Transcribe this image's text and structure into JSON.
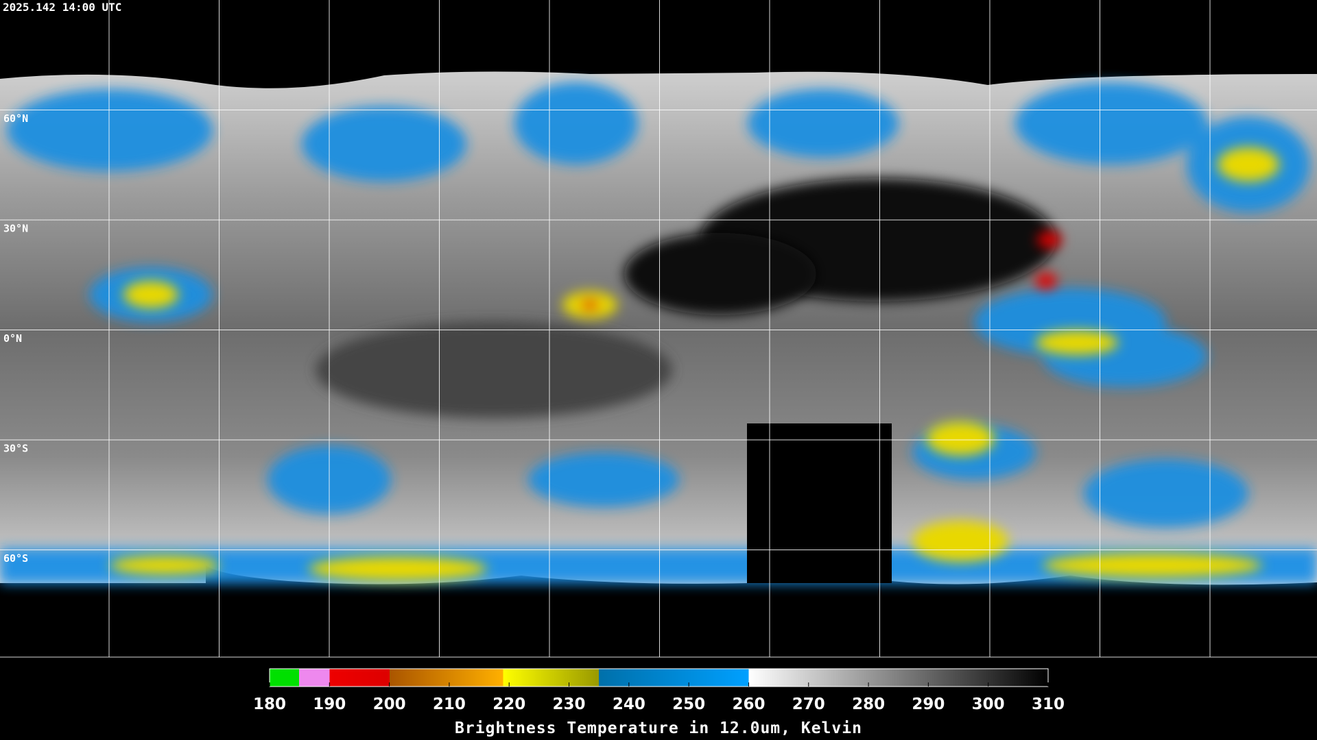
{
  "timestamp": "2025.142 14:00 UTC",
  "lat_labels": [
    "60°N",
    "30°N",
    "0°N",
    "30°S",
    "60°S"
  ],
  "colorbar": {
    "title": "Brightness Temperature in 12.0um, Kelvin",
    "ticks": [
      180,
      190,
      200,
      210,
      220,
      230,
      240,
      250,
      260,
      270,
      280,
      290,
      300,
      310
    ]
  }
}
